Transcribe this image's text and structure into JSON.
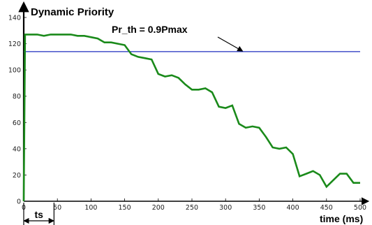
{
  "chart_data": {
    "type": "line",
    "title": "Dynamic Priority",
    "xlabel": "time (ms)",
    "ylabel": "",
    "xlim": [
      0,
      500
    ],
    "ylim": [
      0,
      140
    ],
    "x_ticks": [
      0,
      50,
      100,
      150,
      200,
      250,
      300,
      350,
      400,
      450,
      500
    ],
    "y_ticks": [
      0,
      20,
      40,
      60,
      80,
      100,
      120,
      140
    ],
    "grid": false,
    "colors": {
      "series": "#1a8a1a",
      "threshold": "#1f2fbf",
      "axes": "#000000"
    },
    "series": [
      {
        "x": [
          0,
          2,
          2,
          20,
          20,
          30,
          30,
          40,
          40,
          60,
          60,
          70,
          70,
          80,
          80,
          90,
          90,
          100,
          100,
          110,
          110,
          120,
          120,
          130,
          130,
          140,
          140,
          150,
          150,
          160,
          160,
          170,
          170,
          180,
          180,
          190,
          190,
          200,
          200,
          210,
          210,
          220,
          220,
          230,
          230,
          240,
          240,
          250,
          250,
          260,
          260,
          270,
          270,
          280,
          280,
          290,
          290,
          300,
          300,
          310,
          310,
          320,
          320,
          330,
          330,
          340,
          340,
          350,
          350,
          360,
          360,
          370,
          370,
          380,
          380,
          390,
          390,
          400,
          400,
          410,
          410,
          420,
          420,
          430,
          430,
          440,
          440,
          450,
          450,
          460,
          460,
          470,
          470,
          480,
          480,
          490,
          490,
          500
        ],
        "y": [
          0,
          127,
          127,
          127,
          127,
          126,
          126,
          127,
          127,
          127,
          127,
          127,
          127,
          126,
          126,
          126,
          126,
          125,
          125,
          124,
          124,
          121,
          121,
          121,
          121,
          120,
          120,
          119,
          119,
          112,
          112,
          110,
          110,
          109,
          109,
          108,
          108,
          97,
          97,
          95,
          95,
          96,
          96,
          94,
          94,
          89,
          89,
          85,
          85,
          85,
          85,
          86,
          86,
          83,
          83,
          72,
          72,
          71,
          71,
          73,
          73,
          59,
          59,
          56,
          56,
          57,
          57,
          56,
          56,
          49,
          49,
          41,
          41,
          40,
          40,
          41,
          41,
          36,
          36,
          19,
          19,
          21,
          21,
          23,
          23,
          20,
          20,
          11,
          11,
          16,
          16,
          21,
          21,
          21,
          21,
          14,
          14,
          14
        ]
      }
    ],
    "threshold": {
      "value": 114,
      "label": "Pr_th = 0.9Pmax"
    },
    "annotations": [
      {
        "text": "ts",
        "from": 0,
        "to": 45
      }
    ]
  }
}
